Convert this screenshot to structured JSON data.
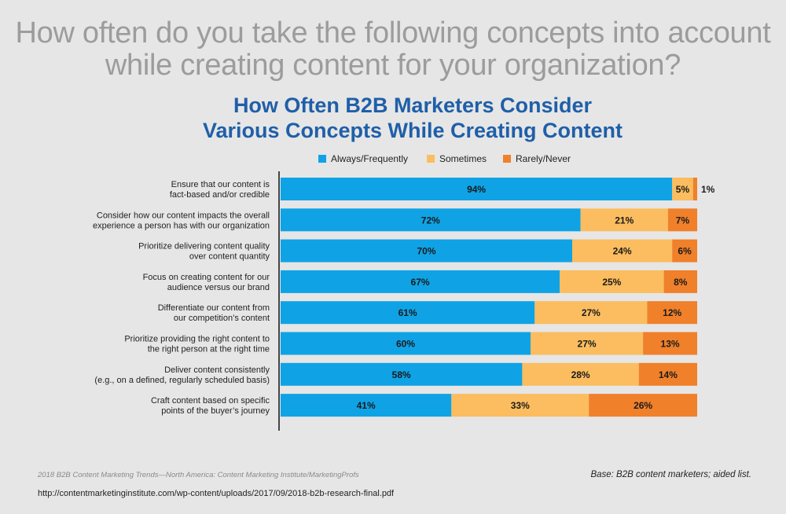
{
  "question": "How often do you take the following concepts into account while creating content for your organization?",
  "chart_data": {
    "type": "bar",
    "orientation": "horizontal",
    "stacked": true,
    "title": "How Often B2B Marketers Consider\nVarious Concepts While Creating Content",
    "categories": [
      "Ensure that our content is\nfact-based and/or credible",
      "Consider how our content impacts the overall\nexperience a person has with our organization",
      "Prioritize delivering content quality\nover content quantity",
      "Focus on creating content for our\naudience versus our brand",
      "Differentiate our content from\nour competition’s content",
      "Prioritize providing the right content to\nthe right person at the right time",
      "Deliver content consistently\n(e.g., on a defined, regularly scheduled basis)",
      "Craft content based on specific\npoints of the buyer’s journey"
    ],
    "series": [
      {
        "name": "Always/Frequently",
        "color": "#0fa3e6",
        "values": [
          94,
          72,
          70,
          67,
          61,
          60,
          58,
          41
        ],
        "labels": [
          "94%",
          "72%",
          "70%",
          "67%",
          "61%",
          "60%",
          "58%",
          "41%"
        ]
      },
      {
        "name": "Sometimes",
        "color": "#fbbd5f",
        "values": [
          5,
          21,
          24,
          25,
          27,
          27,
          28,
          33
        ],
        "labels": [
          "5%",
          "21%",
          "24%",
          "25%",
          "27%",
          "27%",
          "28%",
          "33%"
        ]
      },
      {
        "name": "Rarely/Never",
        "color": "#f0802a",
        "values": [
          1,
          7,
          6,
          8,
          12,
          13,
          14,
          26
        ],
        "labels": [
          "1%",
          "7%",
          "6%",
          "8%",
          "12%",
          "13%",
          "14%",
          "26%"
        ]
      }
    ],
    "xlim": [
      0,
      100
    ],
    "legend": "top",
    "grid": false
  },
  "footer": {
    "source": "2018 B2B Content Marketing Trends—North America: Content Marketing Institute/MarketingProfs",
    "base": "Base: B2B content marketers; aided list.",
    "url": "http://contentmarketinginstitute.com/wp-content/uploads/2017/09/2018-b2b-research-final.pdf"
  }
}
